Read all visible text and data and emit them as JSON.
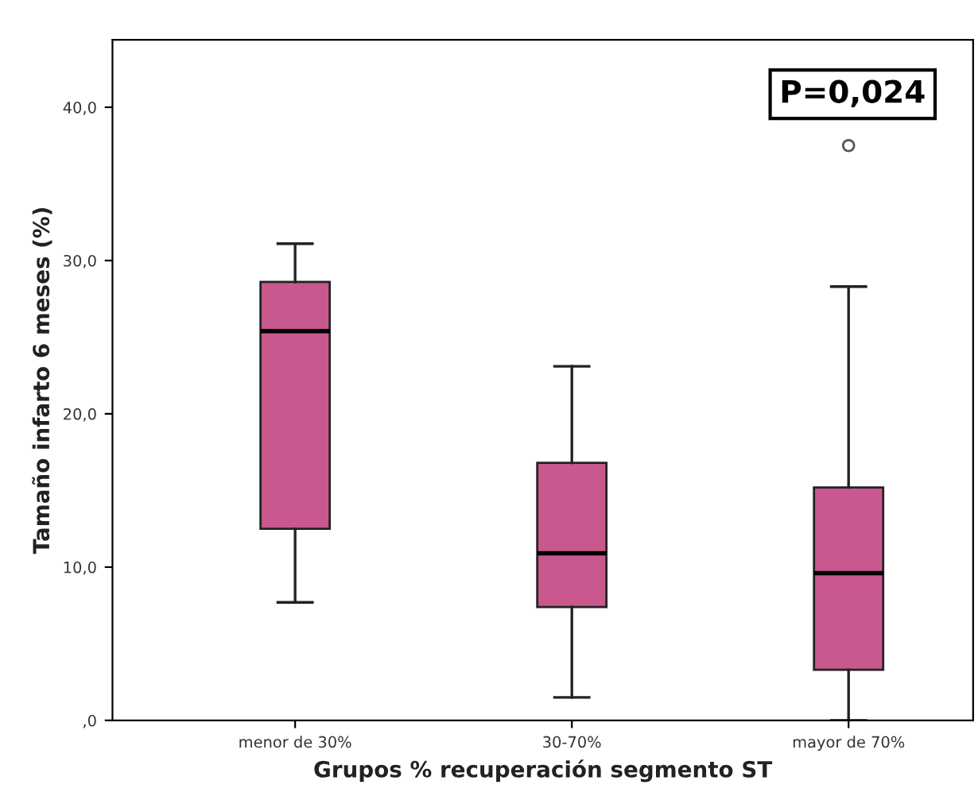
{
  "chart_data": {
    "type": "box",
    "xlabel": "Grupos % recuperación segmento ST",
    "ylabel": "Tamaño infarto 6 meses (%)",
    "categories": [
      "menor de 30%",
      "30-70%",
      "mayor de 70%"
    ],
    "color": "#c9588f",
    "boxes": [
      {
        "low": 7.7,
        "q1": 12.5,
        "median": 25.4,
        "q3": 28.6,
        "high": 31.1
      },
      {
        "low": 1.5,
        "q1": 7.4,
        "median": 10.9,
        "q3": 16.8,
        "high": 23.1
      },
      {
        "low": 0,
        "q1": 3.3,
        "median": 9.6,
        "q3": 15.2,
        "high": 28.3,
        "outliers": [
          37.5
        ]
      }
    ],
    "ylim": [
      0,
      44.4
    ],
    "yticks": [
      {
        "value": 0,
        "label": ",0"
      },
      {
        "value": 10,
        "label": "10,0"
      },
      {
        "value": 20,
        "label": "20,0"
      },
      {
        "value": 30,
        "label": "30,0"
      },
      {
        "value": 40,
        "label": "40,0"
      }
    ],
    "grid": false,
    "annotations": [
      "P=0,024"
    ]
  }
}
